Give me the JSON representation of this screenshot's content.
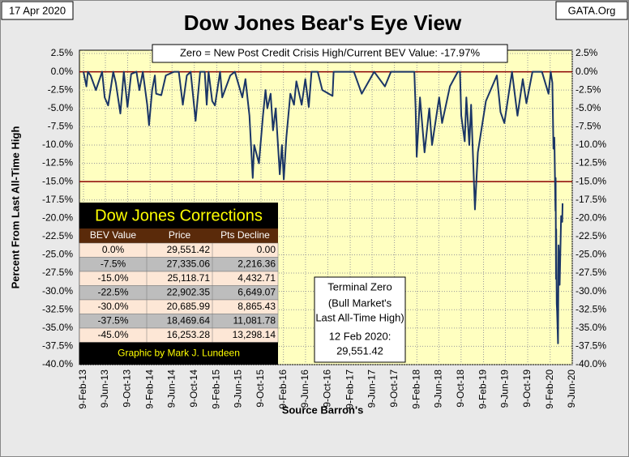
{
  "chart_data": {
    "type": "line",
    "date_stamp": "17 Apr 2020",
    "source_site": "GATA.Org",
    "title": "Dow Jones Bear's Eye View",
    "subtitle": "Zero = New Post Credit Crisis High/Current BEV Value:  -17.97%",
    "y_label": "Percent From Last All-Time High",
    "x_label": "Source Barron's",
    "grid": true,
    "reference_lines": [
      0,
      -15
    ],
    "reference_color": "#8b0000",
    "ylim": [
      -40,
      2.5
    ],
    "yticks": [
      {
        "value": 2.5,
        "label": "2.5%"
      },
      {
        "value": 0,
        "label": "0.0%"
      },
      {
        "value": -2.5,
        "label": "-2.5%"
      },
      {
        "value": -5,
        "label": "-5.0%"
      },
      {
        "value": -7.5,
        "label": "-7.5%"
      },
      {
        "value": -10,
        "label": "-10.0%"
      },
      {
        "value": -12.5,
        "label": "-12.5%"
      },
      {
        "value": -15,
        "label": "-15.0%"
      },
      {
        "value": -17.5,
        "label": "-17.5%"
      },
      {
        "value": -20,
        "label": "-20.0%"
      },
      {
        "value": -22.5,
        "label": "-22.5%"
      },
      {
        "value": -25,
        "label": "-25.0%"
      },
      {
        "value": -27.5,
        "label": "-27.5%"
      },
      {
        "value": -30,
        "label": "-30.0%"
      },
      {
        "value": -32.5,
        "label": "-32.5%"
      },
      {
        "value": -35,
        "label": "-35.0%"
      },
      {
        "value": -37.5,
        "label": "-37.5%"
      },
      {
        "value": -40,
        "label": "-40.0%"
      }
    ],
    "xlim": [
      "2013-02-09",
      "2020-06-09"
    ],
    "xticks": [
      {
        "value": "2013-02-09",
        "label": "9-Feb-13"
      },
      {
        "value": "2013-06-09",
        "label": "9-Jun-13"
      },
      {
        "value": "2013-10-09",
        "label": "9-Oct-13"
      },
      {
        "value": "2014-02-09",
        "label": "9-Feb-14"
      },
      {
        "value": "2014-06-09",
        "label": "9-Jun-14"
      },
      {
        "value": "2014-10-09",
        "label": "9-Oct-14"
      },
      {
        "value": "2015-02-09",
        "label": "9-Feb-15"
      },
      {
        "value": "2015-06-09",
        "label": "9-Jun-15"
      },
      {
        "value": "2015-10-09",
        "label": "9-Oct-15"
      },
      {
        "value": "2016-02-09",
        "label": "9-Feb-16"
      },
      {
        "value": "2016-06-09",
        "label": "9-Jun-16"
      },
      {
        "value": "2016-10-09",
        "label": "9-Oct-16"
      },
      {
        "value": "2017-02-09",
        "label": "9-Feb-17"
      },
      {
        "value": "2017-06-09",
        "label": "9-Jun-17"
      },
      {
        "value": "2017-10-09",
        "label": "9-Oct-17"
      },
      {
        "value": "2018-02-09",
        "label": "9-Feb-18"
      },
      {
        "value": "2018-06-09",
        "label": "9-Jun-18"
      },
      {
        "value": "2018-10-09",
        "label": "9-Oct-18"
      },
      {
        "value": "2019-02-09",
        "label": "9-Feb-19"
      },
      {
        "value": "2019-06-09",
        "label": "9-Jun-19"
      },
      {
        "value": "2019-10-09",
        "label": "9-Oct-19"
      },
      {
        "value": "2020-02-09",
        "label": "9-Feb-20"
      },
      {
        "value": "2020-06-09",
        "label": "9-Jun-20"
      }
    ],
    "series": [
      {
        "color": "#1a3566",
        "x": [
          "2013-02-09",
          "2013-02-25",
          "2013-03-05",
          "2013-03-20",
          "2013-04-18",
          "2013-05-22",
          "2013-06-05",
          "2013-06-24",
          "2013-07-22",
          "2013-08-05",
          "2013-08-30",
          "2013-09-18",
          "2013-10-08",
          "2013-10-28",
          "2013-11-26",
          "2013-12-12",
          "2013-12-31",
          "2014-01-24",
          "2014-02-03",
          "2014-02-20",
          "2014-03-07",
          "2014-03-14",
          "2014-04-11",
          "2014-05-06",
          "2014-06-20",
          "2014-07-16",
          "2014-08-07",
          "2014-08-29",
          "2014-09-19",
          "2014-10-16",
          "2014-11-10",
          "2014-12-05",
          "2014-12-16",
          "2014-12-26",
          "2015-01-15",
          "2015-01-30",
          "2015-02-27",
          "2015-03-11",
          "2015-04-24",
          "2015-05-19",
          "2015-06-29",
          "2015-07-16",
          "2015-08-07",
          "2015-08-25",
          "2015-09-02",
          "2015-09-28",
          "2015-10-20",
          "2015-11-03",
          "2015-11-13",
          "2015-12-01",
          "2015-12-14",
          "2015-12-29",
          "2016-01-20",
          "2016-02-01",
          "2016-02-11",
          "2016-02-25",
          "2016-03-18",
          "2016-04-07",
          "2016-04-20",
          "2016-05-19",
          "2016-06-08",
          "2016-06-27",
          "2016-07-12",
          "2016-08-15",
          "2016-09-09",
          "2016-11-04",
          "2016-11-10",
          "2017-01-25",
          "2017-03-01",
          "2017-04-13",
          "2017-05-17",
          "2017-06-20",
          "2017-08-18",
          "2017-09-20",
          "2018-01-26",
          "2018-02-02",
          "2018-02-08",
          "2018-02-26",
          "2018-03-23",
          "2018-04-18",
          "2018-05-03",
          "2018-06-11",
          "2018-06-27",
          "2018-08-09",
          "2018-09-21",
          "2018-10-03",
          "2018-10-10",
          "2018-10-29",
          "2018-11-07",
          "2018-11-23",
          "2018-12-03",
          "2018-12-24",
          "2019-01-09",
          "2019-02-22",
          "2019-04-23",
          "2019-05-13",
          "2019-06-03",
          "2019-07-15",
          "2019-08-14",
          "2019-09-12",
          "2019-10-02",
          "2019-11-04",
          "2019-12-26",
          "2020-01-31",
          "2020-02-12",
          "2020-02-21",
          "2020-02-27",
          "2020-03-03",
          "2020-03-09",
          "2020-03-10",
          "2020-03-12",
          "2020-03-13",
          "2020-03-16",
          "2020-03-18",
          "2020-03-23",
          "2020-03-26",
          "2020-04-01",
          "2020-04-09",
          "2020-04-15",
          "2020-04-17"
        ],
        "values": [
          0,
          -2.0,
          0,
          -0.5,
          -2.5,
          0,
          -3.5,
          -4.6,
          0,
          -1.5,
          -5.7,
          0,
          -4.8,
          -0.3,
          0,
          -2.5,
          0,
          -4.5,
          -7.3,
          -2.5,
          -0.5,
          -3.0,
          -3.2,
          -0.5,
          0,
          0,
          -4.5,
          -0.5,
          0,
          -6.7,
          0,
          0,
          -4.5,
          0,
          -4.0,
          -4.6,
          0,
          -3.5,
          -0.5,
          0,
          -3.5,
          -1.0,
          -6.0,
          -14.5,
          -10.0,
          -12.5,
          -6.0,
          -2.5,
          -5.0,
          -3.0,
          -8.0,
          -5.0,
          -14.0,
          -10.0,
          -14.7,
          -9.0,
          -3.0,
          -4.5,
          -1.3,
          -4.5,
          -1.0,
          -4.8,
          0,
          0,
          -2.5,
          -3.3,
          0,
          0,
          0,
          -3.0,
          -1.5,
          0,
          -2.0,
          0,
          0,
          -5.0,
          -11.6,
          -3.5,
          -11.0,
          -5.0,
          -10.0,
          -3.5,
          -7.0,
          -2.0,
          0,
          0,
          -6.0,
          -9.5,
          -3.5,
          -10.0,
          -4.5,
          -18.8,
          -11.0,
          -4.0,
          -0.5,
          -5.5,
          -7.0,
          0,
          -6.0,
          -1.0,
          -4.3,
          0,
          0,
          -3.0,
          0,
          -1.5,
          -10.5,
          -9.0,
          -19.0,
          -14.5,
          -28.3,
          -21.5,
          -31.7,
          -32.7,
          -37.1,
          -23.7,
          -29.1,
          -19.7,
          -20.5,
          -17.97
        ]
      }
    ],
    "table": {
      "title": "Dow Jones Corrections",
      "columns": [
        "BEV Value",
        "Price",
        "Pts Decline"
      ],
      "rows": [
        [
          "0.0%",
          "29,551.42",
          "0.00"
        ],
        [
          "-7.5%",
          "27,335.06",
          "2,216.36"
        ],
        [
          "-15.0%",
          "25,118.71",
          "4,432.71"
        ],
        [
          "-22.5%",
          "22,902.35",
          "6,649.07"
        ],
        [
          "-30.0%",
          "20,685.99",
          "8,865.43"
        ],
        [
          "-37.5%",
          "18,469.64",
          "11,081.78"
        ],
        [
          "-45.0%",
          "16,253.28",
          "13,298.14"
        ]
      ],
      "footer": "Graphic by Mark J. Lundeen"
    },
    "note": [
      "Terminal Zero",
      "(Bull Market's",
      "Last All-Time High)",
      "12 Feb 2020:",
      "29,551.42"
    ]
  }
}
